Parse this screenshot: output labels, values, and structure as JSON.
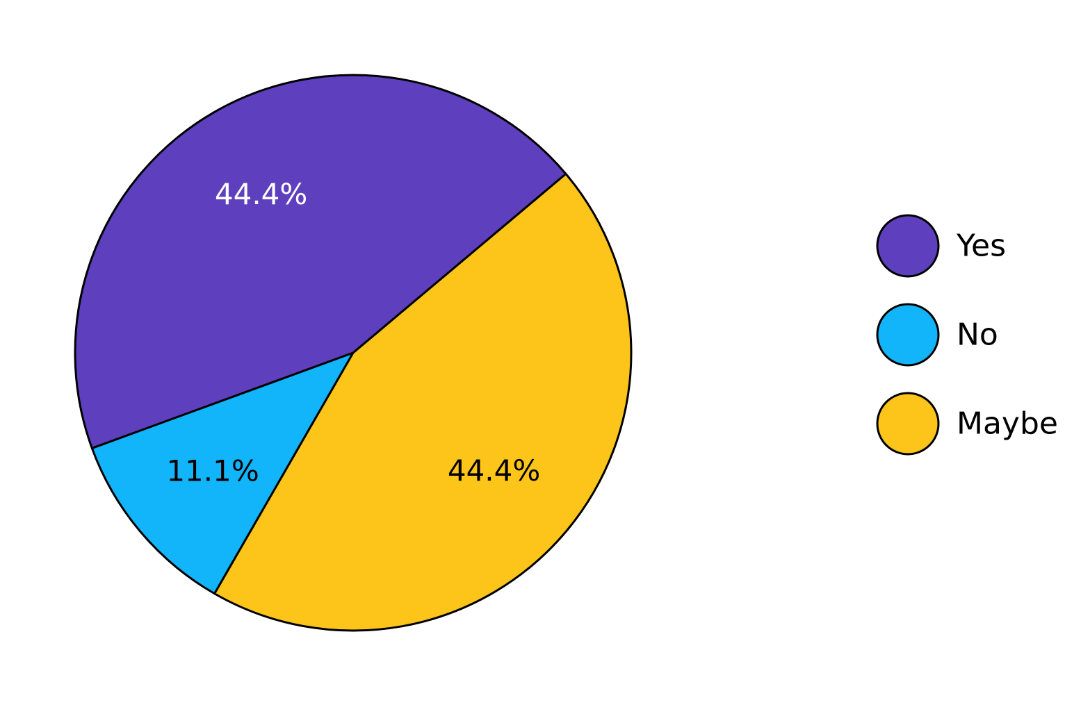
{
  "chart_data": {
    "type": "pie",
    "title": "",
    "categories": [
      "Yes",
      "No",
      "Maybe"
    ],
    "values": [
      44.4,
      11.1,
      44.4
    ],
    "labels": [
      "44.4%",
      "11.1%",
      "44.4%"
    ],
    "colors": [
      "#5E40BE",
      "#12B5FA",
      "#FDC51A"
    ],
    "label_colors": [
      "#ffffff",
      "#000000",
      "#000000"
    ],
    "legend": {
      "placement": "right",
      "items": [
        "Yes",
        "No",
        "Maybe"
      ]
    }
  }
}
